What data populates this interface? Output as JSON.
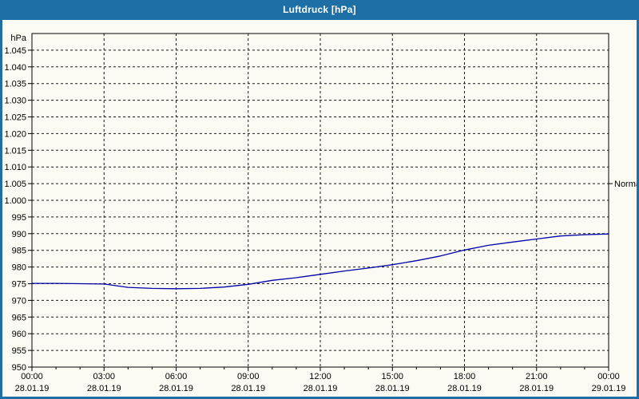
{
  "window": {
    "title": "Luftdruck [hPa]"
  },
  "colors": {
    "titlebar_bg": "#1d6fa5",
    "titlebar_text": "#ffffff",
    "window_border": "#1d6fa5",
    "panel_bg": "#fbfbf3",
    "grid": "#1a1a1a",
    "axis": "#000000",
    "text": "#000000",
    "series_line": "#0000a8"
  },
  "chart_data": {
    "type": "line",
    "title": "Luftdruck [hPa]",
    "y_unit": "hPa",
    "grid": true,
    "legend_position": "none",
    "y_axis": {
      "min": 950,
      "max": 1050,
      "tick_step": 5,
      "ticks": [
        {
          "value": 950,
          "label": "950"
        },
        {
          "value": 955,
          "label": "955"
        },
        {
          "value": 960,
          "label": "960"
        },
        {
          "value": 965,
          "label": "965"
        },
        {
          "value": 970,
          "label": "970"
        },
        {
          "value": 975,
          "label": "975"
        },
        {
          "value": 980,
          "label": "980"
        },
        {
          "value": 985,
          "label": "985"
        },
        {
          "value": 990,
          "label": "990"
        },
        {
          "value": 995,
          "label": "995"
        },
        {
          "value": 1000,
          "label": "1.000"
        },
        {
          "value": 1005,
          "label": "1.005"
        },
        {
          "value": 1010,
          "label": "1.010"
        },
        {
          "value": 1015,
          "label": "1.015"
        },
        {
          "value": 1020,
          "label": "1.020"
        },
        {
          "value": 1025,
          "label": "1.025"
        },
        {
          "value": 1030,
          "label": "1.030"
        },
        {
          "value": 1035,
          "label": "1.035"
        },
        {
          "value": 1040,
          "label": "1.040"
        },
        {
          "value": 1045,
          "label": "1.045"
        }
      ]
    },
    "x_axis": {
      "span_hours": 24,
      "minor_step_hours": 1,
      "major_step_hours": 3,
      "major_ticks": [
        {
          "hour": 0,
          "time": "00:00",
          "date": "28.01.19"
        },
        {
          "hour": 3,
          "time": "03:00",
          "date": "28.01.19"
        },
        {
          "hour": 6,
          "time": "06:00",
          "date": "28.01.19"
        },
        {
          "hour": 9,
          "time": "09:00",
          "date": "28.01.19"
        },
        {
          "hour": 12,
          "time": "12:00",
          "date": "28.01.19"
        },
        {
          "hour": 15,
          "time": "15:00",
          "date": "28.01.19"
        },
        {
          "hour": 18,
          "time": "18:00",
          "date": "28.01.19"
        },
        {
          "hour": 21,
          "time": "21:00",
          "date": "28.01.19"
        },
        {
          "hour": 24,
          "time": "00:00",
          "date": "29.01.19"
        }
      ]
    },
    "series": [
      {
        "name": "Luftdruck",
        "color": "#0000a8",
        "x_hours": [
          0,
          1,
          2,
          3,
          4,
          5,
          6,
          7,
          8,
          9,
          10,
          11,
          12,
          13,
          14,
          15,
          16,
          17,
          18,
          19,
          20,
          21,
          22,
          23,
          24
        ],
        "values": [
          975.1,
          975.1,
          975.0,
          974.9,
          973.9,
          973.6,
          973.5,
          973.6,
          974.0,
          974.8,
          976.0,
          976.8,
          977.8,
          978.8,
          979.7,
          980.7,
          981.9,
          983.3,
          985.1,
          986.5,
          987.5,
          988.4,
          989.3,
          989.7,
          989.9
        ]
      }
    ],
    "annotations": [
      {
        "label": "Normal",
        "value": 1005,
        "side": "right"
      }
    ]
  }
}
